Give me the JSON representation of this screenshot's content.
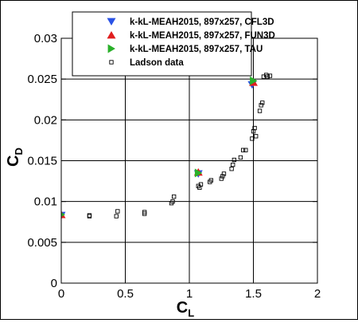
{
  "chart_data": {
    "type": "scatter",
    "title": "",
    "xlabel": "C",
    "xlabel_sub": "L",
    "ylabel": "C",
    "ylabel_sub": "D",
    "xlim": [
      0,
      2
    ],
    "ylim": [
      0,
      0.03
    ],
    "grid": true,
    "legend_position": "top-right",
    "x_ticks": [
      0,
      0.5,
      1,
      1.5,
      2
    ],
    "x_tick_labels": [
      "0",
      "0.5",
      "1",
      "1.5",
      "2"
    ],
    "y_ticks": [
      0,
      0.005,
      0.01,
      0.015,
      0.02,
      0.025,
      0.03
    ],
    "y_tick_labels": [
      "0",
      "0.005",
      "0.01",
      "0.015",
      "0.02",
      "0.025",
      "0.03"
    ],
    "series": [
      {
        "name": "k-kL-MEAH2015, 897x257, CFL3D",
        "marker": "triangle-down",
        "color": "#2a52e6",
        "points": [
          [
            0,
            0.0083
          ],
          [
            1.07,
            0.0134
          ],
          [
            1.49,
            0.0243
          ]
        ]
      },
      {
        "name": "k-kL-MEAH2015, 897x257, FUN3D",
        "marker": "triangle-up",
        "color": "#e01e1e",
        "points": [
          [
            0,
            0.0084
          ],
          [
            1.07,
            0.0136
          ],
          [
            1.5,
            0.0246
          ]
        ]
      },
      {
        "name": "k-kL-MEAH2015, 897x257, TAU",
        "marker": "triangle-right",
        "color": "#2ab02a",
        "points": [
          [
            0,
            0.0084
          ],
          [
            1.07,
            0.0135
          ],
          [
            1.5,
            0.0248
          ]
        ]
      },
      {
        "name": "Ladson data",
        "marker": "square-open",
        "color": "#000000",
        "points": [
          [
            0.22,
            0.0082
          ],
          [
            0.22,
            0.0083
          ],
          [
            0.43,
            0.0082
          ],
          [
            0.44,
            0.0088
          ],
          [
            0.65,
            0.0085
          ],
          [
            0.65,
            0.0087
          ],
          [
            0.86,
            0.0098
          ],
          [
            0.87,
            0.01
          ],
          [
            0.88,
            0.0106
          ],
          [
            1.07,
            0.0119
          ],
          [
            1.08,
            0.0117
          ],
          [
            1.09,
            0.0121
          ],
          [
            1.16,
            0.0124
          ],
          [
            1.17,
            0.0126
          ],
          [
            1.25,
            0.0128
          ],
          [
            1.26,
            0.0131
          ],
          [
            1.27,
            0.0134
          ],
          [
            1.33,
            0.014
          ],
          [
            1.34,
            0.0145
          ],
          [
            1.35,
            0.0151
          ],
          [
            1.4,
            0.0154
          ],
          [
            1.42,
            0.0163
          ],
          [
            1.44,
            0.0163
          ],
          [
            1.49,
            0.0177
          ],
          [
            1.5,
            0.0186
          ],
          [
            1.51,
            0.019
          ],
          [
            1.52,
            0.018
          ],
          [
            1.55,
            0.0211
          ],
          [
            1.56,
            0.0218
          ],
          [
            1.57,
            0.0221
          ],
          [
            1.58,
            0.0253
          ],
          [
            1.6,
            0.0255
          ],
          [
            1.61,
            0.0253
          ],
          [
            1.63,
            0.0254
          ]
        ]
      }
    ]
  }
}
